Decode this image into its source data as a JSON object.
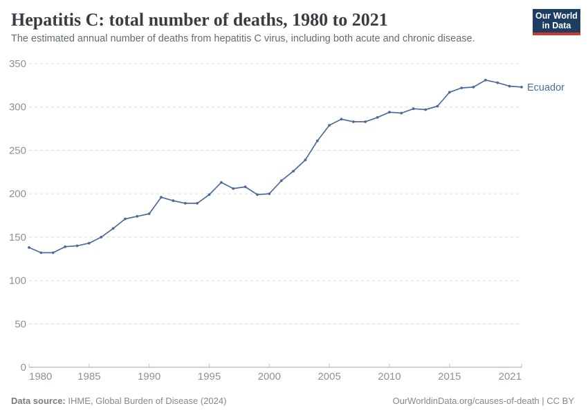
{
  "header": {
    "title": "Hepatitis C: total number of deaths, 1980 to 2021",
    "subtitle": "The estimated annual number of deaths from hepatitis C virus, including both acute and chronic disease."
  },
  "logo": {
    "line1": "Our World",
    "line2": "in Data",
    "bg_color": "#1d3d63",
    "accent_color": "#d2352b"
  },
  "chart_data": {
    "type": "line",
    "title": "Hepatitis C: total number of deaths, 1980 to 2021",
    "entity": "Ecuador",
    "x": [
      1980,
      1981,
      1982,
      1983,
      1984,
      1985,
      1986,
      1987,
      1988,
      1989,
      1990,
      1991,
      1992,
      1993,
      1994,
      1995,
      1996,
      1997,
      1998,
      1999,
      2000,
      2001,
      2002,
      2003,
      2004,
      2005,
      2006,
      2007,
      2008,
      2009,
      2010,
      2011,
      2012,
      2013,
      2014,
      2015,
      2016,
      2017,
      2018,
      2019,
      2020,
      2021
    ],
    "values": [
      138,
      132,
      132,
      139,
      140,
      143,
      150,
      160,
      171,
      174,
      177,
      196,
      192,
      189,
      189,
      199,
      213,
      206,
      208,
      199,
      200,
      215,
      226,
      239,
      261,
      279,
      286,
      283,
      283,
      288,
      294,
      293,
      298,
      297,
      301,
      317,
      322,
      323,
      331,
      328,
      324,
      323
    ],
    "xlim": [
      1980,
      2021
    ],
    "ylim": [
      0,
      350
    ],
    "xticks": [
      1980,
      1985,
      1990,
      1995,
      2000,
      2005,
      2010,
      2015,
      2021
    ],
    "yticks": [
      0,
      50,
      100,
      150,
      200,
      250,
      300,
      350
    ],
    "grid": "dashed-horizontal",
    "legend_position": "end-of-line",
    "line_color": "#4c6a9c",
    "grid_color": "#dcdcdc",
    "axis_color": "#a0a0a0",
    "tick_color": "#c2c2c2",
    "tick_label_color": "#8e9196"
  },
  "footer": {
    "datasource_label": "Data source:",
    "datasource_value": "IHME, Global Burden of Disease (2024)",
    "link_text": "OurWorldinData.org/causes-of-death | CC BY"
  }
}
